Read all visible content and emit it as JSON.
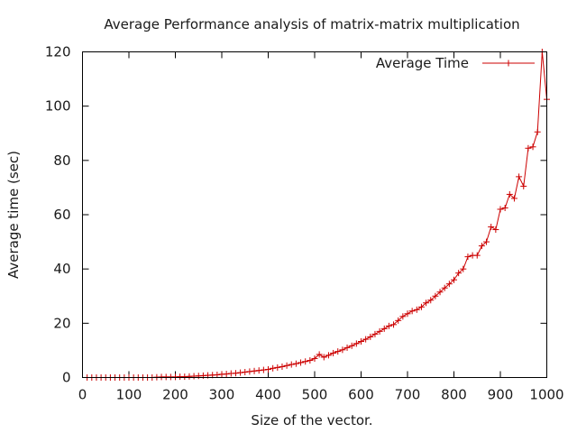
{
  "chart_data": {
    "type": "line",
    "title": "Average Performance analysis of matrix-matrix multiplication",
    "xlabel": "Size of the vector.",
    "ylabel": "Average time (sec)",
    "xlim": [
      0,
      1000
    ],
    "ylim": [
      0,
      120
    ],
    "xticks": [
      "0",
      "100",
      "200",
      "300",
      "400",
      "500",
      "600",
      "700",
      "800",
      "900",
      "1000"
    ],
    "yticks": [
      "0",
      "20",
      "40",
      "60",
      "80",
      "100",
      "120"
    ],
    "grid": false,
    "legend": "top-right",
    "color": "#cc0000",
    "series": [
      {
        "name": "Average Time",
        "x": [
          10,
          20,
          30,
          40,
          50,
          60,
          70,
          80,
          90,
          100,
          110,
          120,
          130,
          140,
          150,
          160,
          170,
          180,
          190,
          200,
          210,
          220,
          230,
          240,
          250,
          260,
          270,
          280,
          290,
          300,
          310,
          320,
          330,
          340,
          350,
          360,
          370,
          380,
          390,
          400,
          410,
          420,
          430,
          440,
          450,
          460,
          470,
          480,
          490,
          500,
          510,
          520,
          530,
          540,
          550,
          560,
          570,
          580,
          590,
          600,
          610,
          620,
          630,
          640,
          650,
          660,
          670,
          680,
          690,
          700,
          710,
          720,
          730,
          740,
          750,
          760,
          770,
          780,
          790,
          800,
          810,
          820,
          830,
          840,
          850,
          860,
          870,
          880,
          890,
          900,
          910,
          920,
          930,
          940,
          950,
          960,
          970,
          980,
          990,
          1000
        ],
        "y": [
          0,
          0,
          0,
          0,
          0,
          0,
          0,
          0,
          0,
          0,
          0,
          0,
          0,
          0,
          0,
          0.1,
          0.2,
          0.2,
          0.2,
          0.2,
          0.3,
          0.3,
          0.4,
          0.5,
          0.6,
          0.7,
          0.8,
          0.9,
          1.0,
          1.2,
          1.3,
          1.5,
          1.6,
          1.8,
          2.0,
          2.2,
          2.4,
          2.6,
          2.8,
          3.0,
          3.4,
          3.7,
          4.0,
          4.4,
          4.8,
          5.1,
          5.5,
          5.9,
          6.3,
          7.0,
          8.5,
          7.5,
          8.2,
          9.0,
          9.6,
          10.2,
          11.0,
          11.7,
          12.5,
          13.3,
          14.1,
          15.0,
          16.0,
          17.0,
          18.0,
          19.0,
          19.5,
          21.0,
          22.5,
          23.5,
          24.5,
          25.0,
          26.0,
          27.5,
          28.5,
          30.0,
          31.5,
          33.0,
          34.5,
          36.0,
          38.5,
          40.0,
          44.5,
          45.0,
          45.0,
          48.5,
          50.0,
          55.5,
          54.5,
          62.0,
          62.5,
          67.5,
          66.0,
          74.0,
          70.5,
          84.5,
          85.0,
          90.5,
          120.0,
          102.5
        ]
      }
    ]
  }
}
